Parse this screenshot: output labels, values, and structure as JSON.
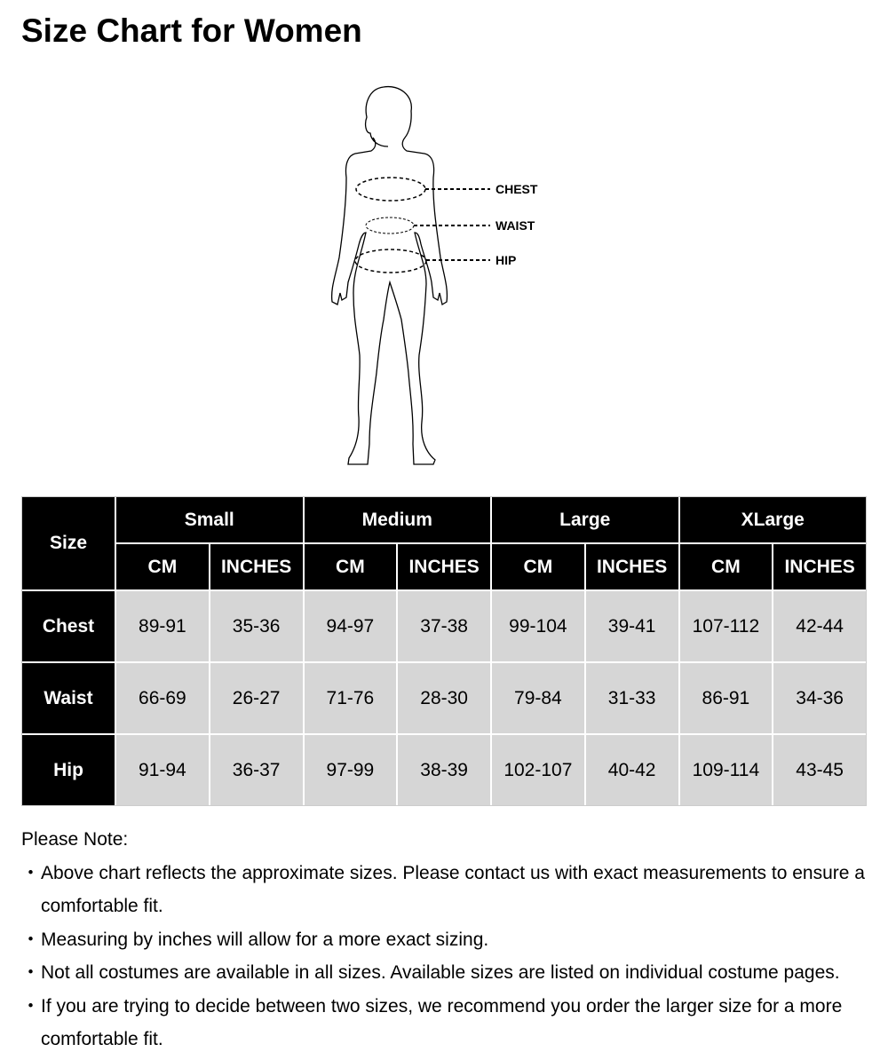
{
  "title": "Size Chart for Women",
  "figure": {
    "labels": [
      "CHEST",
      "WAIST",
      "HIP"
    ]
  },
  "table": {
    "corner": "Size",
    "sizes": [
      "Small",
      "Medium",
      "Large",
      "XLarge"
    ],
    "units": [
      "CM",
      "INCHES"
    ],
    "rows": [
      {
        "label": "Chest",
        "values": [
          "89-91",
          "35-36",
          "94-97",
          "37-38",
          "99-104",
          "39-41",
          "107-112",
          "42-44"
        ]
      },
      {
        "label": "Waist",
        "values": [
          "66-69",
          "26-27",
          "71-76",
          "28-30",
          "79-84",
          "31-33",
          "86-91",
          "34-36"
        ]
      },
      {
        "label": "Hip",
        "values": [
          "91-94",
          "36-37",
          "97-99",
          "38-39",
          "102-107",
          "40-42",
          "109-114",
          "43-45"
        ]
      }
    ]
  },
  "notes": {
    "heading": "Please Note:",
    "items": [
      "Above chart reflects the approximate sizes. Please contact us with exact measurements to ensure a comfortable fit.",
      "Measuring by inches will allow for a more exact sizing.",
      "Not all costumes are available in all sizes. Available sizes are listed on individual costume pages.",
      "If you are trying to decide between two sizes, we recommend you order the larger size for a more comfortable fit."
    ]
  }
}
